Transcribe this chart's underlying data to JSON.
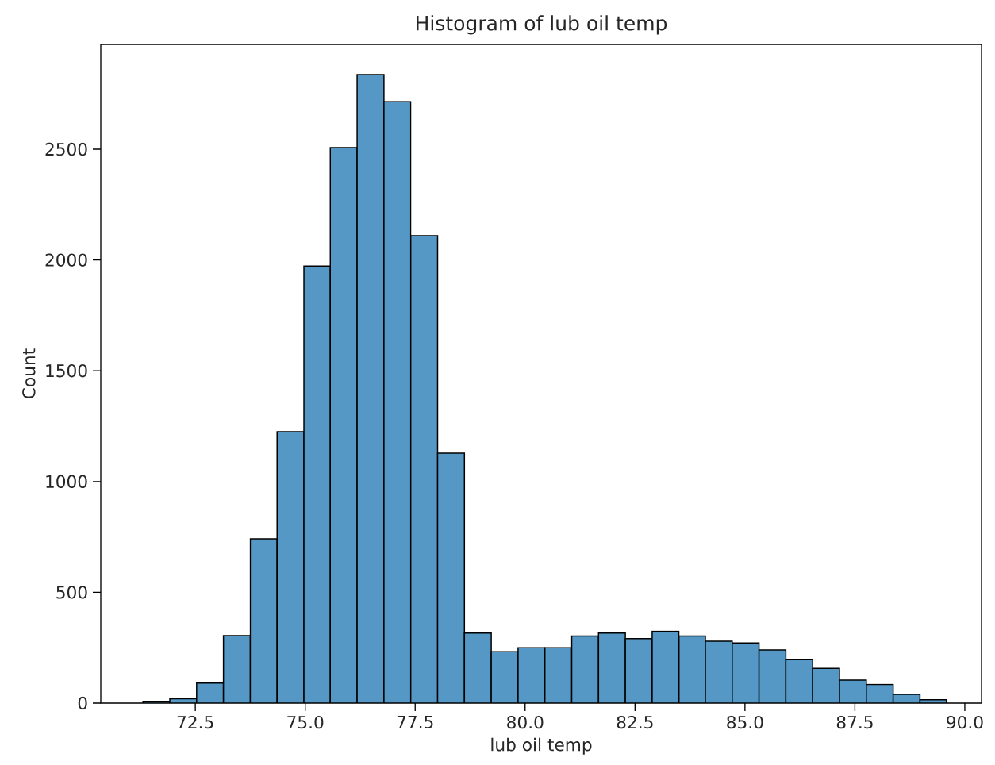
{
  "chart_data": {
    "type": "histogram",
    "title": "Histogram of lub oil temp",
    "xlabel": "lub oil temp",
    "ylabel": "Count",
    "bins": [
      71.31,
      71.92,
      72.53,
      73.14,
      73.75,
      74.36,
      74.97,
      75.57,
      76.18,
      76.79,
      77.4,
      78.01,
      78.62,
      79.23,
      79.84,
      80.45,
      81.06,
      81.67,
      82.28,
      82.89,
      83.5,
      84.1,
      84.71,
      85.32,
      85.93,
      86.54,
      87.15,
      87.76,
      88.37,
      88.98,
      89.58
    ],
    "values": [
      8,
      20,
      90,
      304,
      741,
      1225,
      1973,
      2507,
      2837,
      2715,
      2110,
      1128,
      316,
      232,
      250,
      250,
      303,
      316,
      291,
      324,
      303,
      279,
      271,
      240,
      196,
      157,
      104,
      84,
      39,
      15
    ],
    "color": "#5598c6",
    "xlim": [
      70.35,
      90.38
    ],
    "ylim": [
      0,
      2973
    ],
    "xticks": [
      {
        "value": 72.5,
        "label": "72.5"
      },
      {
        "value": 75,
        "label": "75.0"
      },
      {
        "value": 77.5,
        "label": "77.5"
      },
      {
        "value": 80,
        "label": "80.0"
      },
      {
        "value": 82.5,
        "label": "82.5"
      },
      {
        "value": 85,
        "label": "85.0"
      },
      {
        "value": 87.5,
        "label": "87.5"
      },
      {
        "value": 90,
        "label": "90.0"
      }
    ],
    "yticks": [
      0,
      500,
      1000,
      1500,
      2000,
      2500
    ]
  }
}
